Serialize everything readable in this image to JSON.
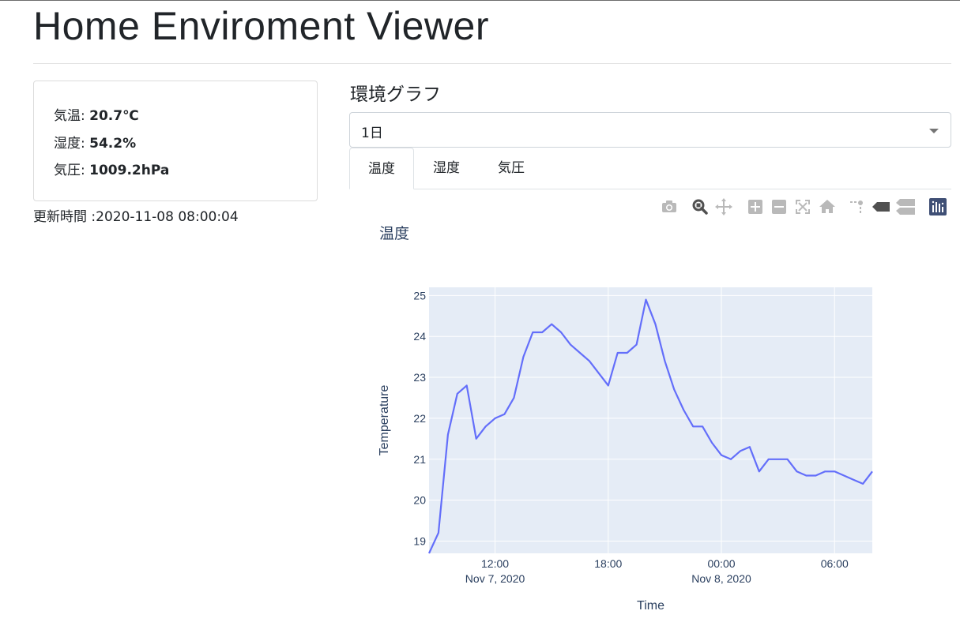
{
  "page": {
    "title": "Home Enviroment Viewer"
  },
  "status": {
    "temperature_label": "気温:",
    "temperature_value": "20.7℃",
    "humidity_label": "湿度:",
    "humidity_value": "54.2%",
    "pressure_label": "気圧:",
    "pressure_value": "1009.2hPa",
    "updated": "更新時間 :2020-11-08 08:00:04"
  },
  "graph": {
    "heading": "環境グラフ",
    "range_selected": "1日",
    "tabs": [
      {
        "label": "温度",
        "active": true
      },
      {
        "label": "湿度",
        "active": false
      },
      {
        "label": "気圧",
        "active": false
      }
    ]
  },
  "modebar": {
    "icons": [
      "camera-icon",
      "zoom-icon",
      "pan-icon",
      "zoom-in-icon",
      "zoom-out-icon",
      "autoscale-icon",
      "reset-axes-icon",
      "spike-lines-icon",
      "hover-closest-icon",
      "hover-compare-icon",
      "plotly-logo-icon"
    ]
  },
  "chart_data": {
    "type": "line",
    "title": "温度",
    "xlabel": "Time",
    "ylabel": "Temperature",
    "x_tick_labels": [
      {
        "time": "12:00",
        "date": "Nov 7, 2020"
      },
      {
        "time": "18:00",
        "date": ""
      },
      {
        "time": "00:00",
        "date": "Nov 8, 2020"
      },
      {
        "time": "06:00",
        "date": ""
      }
    ],
    "y_tick_labels": [
      "19",
      "20",
      "21",
      "22",
      "23",
      "24",
      "25"
    ],
    "ylim": [
      18.7,
      25.2
    ],
    "xlim": [
      "2020-11-07 08:30",
      "2020-11-08 08:00"
    ],
    "grid": true,
    "line_color": "#636efa",
    "plot_bg": "#e5ecf6",
    "series": [
      {
        "x": [
          "2020-11-07 08:30",
          "2020-11-07 09:00",
          "2020-11-07 09:30",
          "2020-11-07 10:00",
          "2020-11-07 10:30",
          "2020-11-07 11:00",
          "2020-11-07 11:30",
          "2020-11-07 12:00",
          "2020-11-07 12:30",
          "2020-11-07 13:00",
          "2020-11-07 13:30",
          "2020-11-07 14:00",
          "2020-11-07 14:30",
          "2020-11-07 15:00",
          "2020-11-07 15:30",
          "2020-11-07 16:00",
          "2020-11-07 16:30",
          "2020-11-07 17:00",
          "2020-11-07 17:30",
          "2020-11-07 18:00",
          "2020-11-07 18:30",
          "2020-11-07 19:00",
          "2020-11-07 19:30",
          "2020-11-07 20:00",
          "2020-11-07 20:30",
          "2020-11-07 21:00",
          "2020-11-07 21:30",
          "2020-11-07 22:00",
          "2020-11-07 22:30",
          "2020-11-07 23:00",
          "2020-11-07 23:30",
          "2020-11-08 00:00",
          "2020-11-08 00:30",
          "2020-11-08 01:00",
          "2020-11-08 01:30",
          "2020-11-08 02:00",
          "2020-11-08 02:30",
          "2020-11-08 03:00",
          "2020-11-08 03:30",
          "2020-11-08 04:00",
          "2020-11-08 04:30",
          "2020-11-08 05:00",
          "2020-11-08 05:30",
          "2020-11-08 06:00",
          "2020-11-08 06:30",
          "2020-11-08 07:00",
          "2020-11-08 07:30",
          "2020-11-08 08:00"
        ],
        "y": [
          18.7,
          19.2,
          21.6,
          22.6,
          22.8,
          21.5,
          21.8,
          22.0,
          22.1,
          22.5,
          23.5,
          24.1,
          24.1,
          24.3,
          24.1,
          23.8,
          23.6,
          23.4,
          23.1,
          22.8,
          23.6,
          23.6,
          23.8,
          24.9,
          24.3,
          23.4,
          22.7,
          22.2,
          21.8,
          21.8,
          21.4,
          21.1,
          21.0,
          21.2,
          21.3,
          20.7,
          21.0,
          21.0,
          21.0,
          20.7,
          20.6,
          20.6,
          20.7,
          20.7,
          20.6,
          20.5,
          20.4,
          20.7
        ]
      }
    ]
  }
}
